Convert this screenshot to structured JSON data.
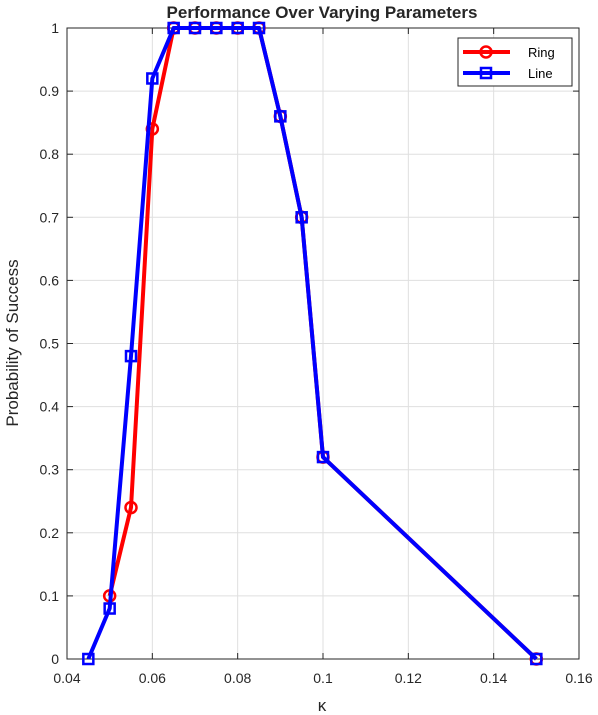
{
  "chart_data": {
    "type": "line",
    "title": "Performance Over Varying Parameters",
    "xlabel": "κ",
    "ylabel": "Probability of Success",
    "xlim": [
      0.04,
      0.16
    ],
    "ylim": [
      0,
      1
    ],
    "xticks": [
      0.04,
      0.06,
      0.08,
      0.1,
      0.12,
      0.14,
      0.16
    ],
    "xtick_labels": [
      "0.04",
      "0.06",
      "0.08",
      "0.1",
      "0.12",
      "0.14",
      "0.16"
    ],
    "yticks": [
      0,
      0.1,
      0.2,
      0.3,
      0.4,
      0.5,
      0.6,
      0.7,
      0.8,
      0.9,
      1
    ],
    "ytick_labels": [
      "0",
      "0.1",
      "0.2",
      "0.3",
      "0.4",
      "0.5",
      "0.6",
      "0.7",
      "0.8",
      "0.9",
      "1"
    ],
    "grid": true,
    "legend_position": "top-right",
    "series": [
      {
        "name": "Ring",
        "color": "#ff0000",
        "marker": "circle",
        "x": [
          0.05,
          0.055,
          0.06,
          0.065,
          0.07,
          0.075,
          0.08,
          0.085,
          0.09,
          0.095,
          0.1,
          0.15
        ],
        "y": [
          0.1,
          0.24,
          0.84,
          1,
          1,
          1,
          1,
          1,
          0.86,
          0.7,
          0.32,
          0
        ]
      },
      {
        "name": "Line",
        "color": "#0000ff",
        "marker": "square",
        "x": [
          0.045,
          0.05,
          0.055,
          0.06,
          0.065,
          0.07,
          0.075,
          0.08,
          0.085,
          0.09,
          0.095,
          0.1,
          0.15
        ],
        "y": [
          0,
          0.08,
          0.48,
          0.92,
          1,
          1,
          1,
          1,
          1,
          0.86,
          0.7,
          0.32,
          0
        ]
      }
    ]
  }
}
